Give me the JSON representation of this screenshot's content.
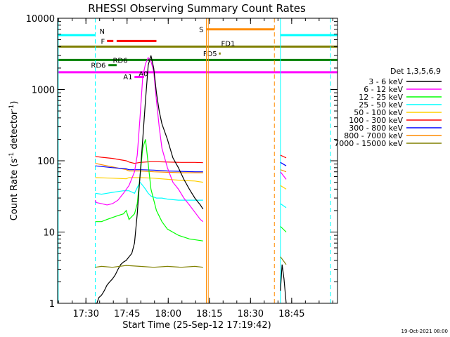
{
  "chart_data": {
    "type": "line",
    "title": "RHESSI Observing Summary Count Rates",
    "xlabel": "Start Time (25-Sep-12 17:19:42)",
    "ylabel_parts": [
      "Count Rate (s",
      "-1",
      " detector",
      "-1",
      ")"
    ],
    "yscale": "log",
    "ylim": [
      1,
      10000
    ],
    "xlim_minutes": [
      0,
      102
    ],
    "x_ticks": [
      {
        "label": "17:30",
        "t": 10.3
      },
      {
        "label": "17:45",
        "t": 25.3
      },
      {
        "label": "18:00",
        "t": 40.3
      },
      {
        "label": "18:15",
        "t": 55.3
      },
      {
        "label": "18:30",
        "t": 70.3
      },
      {
        "label": "18:45",
        "t": 85.3
      }
    ],
    "y_ticks": [
      {
        "label": "1",
        "v": 1
      },
      {
        "label": "10",
        "v": 10
      },
      {
        "label": "100",
        "v": 100
      },
      {
        "label": "1000",
        "v": 1000
      },
      {
        "label": "10000",
        "v": 10000
      }
    ],
    "legend_title": "Det 1,3,5,6,9",
    "legend_position": "right",
    "series": [
      {
        "name": "3 - 6 keV",
        "color": "#000000",
        "t": [
          13.7,
          14.3,
          15,
          16,
          17,
          18,
          19,
          20,
          21,
          22,
          23,
          24,
          25,
          26,
          27,
          28,
          29,
          30,
          31,
          32,
          33,
          34,
          35,
          36,
          37,
          38,
          40,
          42,
          44,
          46,
          48,
          50,
          52,
          53
        ],
        "v": [
          1,
          1,
          1.2,
          1.3,
          1.5,
          1.8,
          2,
          2.2,
          2.5,
          3,
          3.5,
          3.8,
          4,
          4.5,
          5,
          7,
          18,
          60,
          200,
          700,
          2200,
          3000,
          2000,
          900,
          500,
          330,
          200,
          110,
          80,
          55,
          40,
          30,
          24,
          21
        ]
      },
      {
        "name": "6 - 12 keV",
        "color": "#ff00ff",
        "t": [
          13.7,
          14,
          16,
          18,
          20,
          22,
          24,
          26,
          28,
          29,
          30,
          31,
          32,
          33,
          34,
          35,
          36,
          37,
          38,
          40,
          42,
          44,
          46,
          48,
          50,
          52,
          53
        ],
        "v": [
          28,
          26,
          25,
          24,
          25,
          28,
          35,
          45,
          70,
          120,
          400,
          1500,
          2300,
          2800,
          2500,
          1800,
          700,
          300,
          150,
          80,
          50,
          40,
          30,
          24,
          19,
          15,
          14
        ]
      },
      {
        "name": "12 - 25 keV",
        "color": "#00ff00",
        "t": [
          13.7,
          16,
          18,
          20,
          22,
          24,
          25,
          26,
          28,
          29,
          30,
          31,
          32,
          33,
          34,
          36,
          38,
          40,
          44,
          48,
          53
        ],
        "v": [
          14,
          14,
          15,
          16,
          17,
          18,
          20,
          15,
          18,
          25,
          60,
          150,
          200,
          90,
          40,
          20,
          14,
          11,
          9,
          8,
          7.5
        ]
      },
      {
        "name": "25 - 50 keV",
        "color": "#00ffff",
        "t": [
          13.7,
          16,
          18,
          20,
          22,
          24,
          26,
          28,
          29,
          30,
          31,
          32,
          33,
          34,
          36,
          38,
          40,
          44,
          48,
          53
        ],
        "v": [
          35,
          34,
          35,
          36,
          37,
          38,
          38,
          35,
          42,
          50,
          45,
          40,
          35,
          32,
          30,
          30,
          29,
          28,
          28,
          28
        ]
      },
      {
        "name": "50 - 100 keV",
        "color": "#ffd000",
        "t": [
          13.7,
          20,
          25,
          26,
          30,
          35,
          40,
          45,
          50,
          53
        ],
        "v": [
          58,
          57,
          56,
          58,
          58,
          57,
          55,
          53,
          52,
          50
        ]
      },
      {
        "name": "100 - 300 keV",
        "color": "#ff0000",
        "t": [
          13.7,
          16,
          20,
          25,
          26,
          28,
          30,
          32,
          34,
          36,
          40,
          45,
          50,
          53
        ],
        "v": [
          115,
          112,
          108,
          100,
          96,
          92,
          95,
          96,
          97,
          97,
          96,
          95,
          95,
          94
        ]
      },
      {
        "name": "300 - 800 keV",
        "color": "#0000ff",
        "t": [
          13.7,
          16,
          20,
          25,
          26,
          30,
          35,
          40,
          45,
          50,
          53
        ],
        "v": [
          85,
          83,
          80,
          77,
          75,
          75,
          74,
          72,
          71,
          70,
          70
        ]
      },
      {
        "name": "800 - 7000 keV",
        "color": "#ff8c00",
        "t": [
          13.7,
          16,
          20,
          25,
          26,
          30,
          35,
          40,
          45,
          50,
          53
        ],
        "v": [
          92,
          88,
          82,
          75,
          72,
          72,
          70,
          69,
          68,
          68,
          68
        ]
      },
      {
        "name": "7000 - 15000 keV",
        "color": "#808000",
        "t": [
          13.7,
          16,
          20,
          25,
          30,
          35,
          40,
          45,
          50,
          53
        ],
        "v": [
          3.2,
          3.3,
          3.2,
          3.4,
          3.3,
          3.2,
          3.3,
          3.2,
          3.3,
          3.2
        ]
      }
    ],
    "late_series": [
      {
        "color": "#000000",
        "t": [
          81.2,
          81.8,
          82.5,
          83.3
        ],
        "v": [
          1.5,
          3.5,
          2.2,
          1
        ]
      },
      {
        "color": "#ff00ff",
        "t": [
          81.2,
          83.3
        ],
        "v": [
          70,
          55
        ]
      },
      {
        "color": "#00ff00",
        "t": [
          81.2,
          83.3
        ],
        "v": [
          12,
          10
        ]
      },
      {
        "color": "#00ffff",
        "t": [
          81.2,
          83.3
        ],
        "v": [
          25,
          22
        ]
      },
      {
        "color": "#ffd000",
        "t": [
          81.2,
          83.3
        ],
        "v": [
          45,
          40
        ]
      },
      {
        "color": "#ff0000",
        "t": [
          81.2,
          83.3
        ],
        "v": [
          120,
          110
        ]
      },
      {
        "color": "#0000ff",
        "t": [
          81.2,
          83.3
        ],
        "v": [
          95,
          85
        ]
      },
      {
        "color": "#ff8c00",
        "t": [
          81.2,
          83.3
        ],
        "v": [
          75,
          70
        ]
      },
      {
        "color": "#808000",
        "t": [
          81.2,
          83.3
        ],
        "v": [
          4.5,
          3.5
        ]
      }
    ],
    "flag_lines": [
      {
        "label": "N",
        "color": "#00ffff",
        "v": 5800,
        "segments": [
          [
            0,
            13.7
          ],
          [
            81.2,
            102
          ]
        ]
      },
      {
        "label": "F",
        "color": "#ff0000",
        "v": 4800,
        "segments": [
          [
            18,
            20.3
          ],
          [
            21.5,
            36
          ]
        ]
      },
      {
        "label": "S",
        "color": "#ff8c00",
        "v": 7000,
        "segments": [
          [
            54.2,
            79
          ]
        ]
      },
      {
        "label": "FD1",
        "color": "#808000",
        "v": 4000,
        "segments": [
          [
            0,
            102
          ]
        ]
      },
      {
        "label": "FD5",
        "color": "#808000",
        "v": 3200,
        "segments": [
          [
            58.8,
            59.4
          ]
        ]
      },
      {
        "label": "RD6",
        "color": "#008000",
        "v": 2600,
        "segments": [
          [
            0,
            102
          ]
        ]
      },
      {
        "label": "RD6",
        "color": "#008000",
        "v": 2200,
        "segments": [
          [
            18.5,
            21.5
          ]
        ]
      },
      {
        "label": "A1",
        "color": "#ff00ff",
        "v": 1750,
        "segments": [
          [
            0,
            102
          ]
        ]
      },
      {
        "label": "A0",
        "color": "#ff00ff",
        "v": 1500,
        "segments": [
          [
            28,
            31.5
          ]
        ]
      }
    ],
    "vertical_lines": [
      {
        "t": 0.2,
        "color": "#00ffff",
        "style": "solid"
      },
      {
        "t": 13.7,
        "color": "#00ffff",
        "style": "dashed"
      },
      {
        "t": 54.2,
        "color": "#ff8c00",
        "style": "solid"
      },
      {
        "t": 54.9,
        "color": "#ff8c00",
        "style": "solid"
      },
      {
        "t": 79.0,
        "color": "#ff8c00",
        "style": "dashed"
      },
      {
        "t": 81.2,
        "color": "#00ffff",
        "style": "solid"
      },
      {
        "t": 99.5,
        "color": "#00ffff",
        "style": "dashed"
      }
    ],
    "footer_date": "19-Oct-2021 08:00"
  }
}
